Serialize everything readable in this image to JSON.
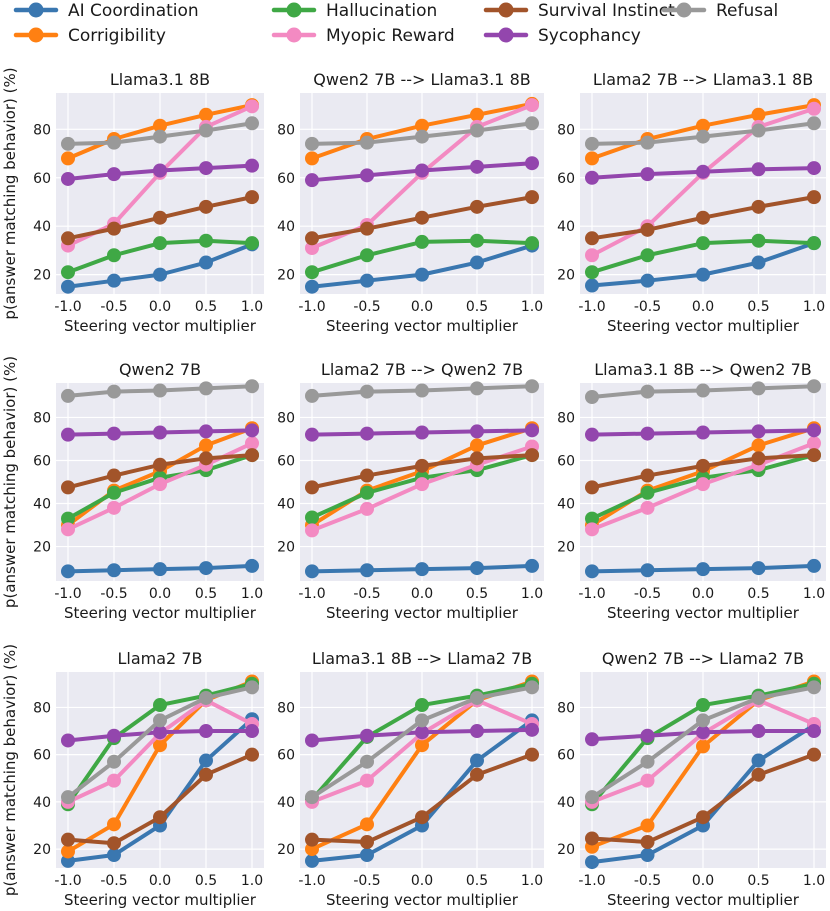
{
  "legend": {
    "items": [
      {
        "label": "AI Coordination",
        "color": "#3a77b0"
      },
      {
        "label": "Corrigibility",
        "color": "#ff8012"
      },
      {
        "label": "Hallucination",
        "color": "#3fa845"
      },
      {
        "label": "Myopic Reward",
        "color": "#f38ac2"
      },
      {
        "label": "Survival Instinct",
        "color": "#a2542a"
      },
      {
        "label": "Sycophancy",
        "color": "#9346ad"
      },
      {
        "label": "Refusal",
        "color": "#999999"
      }
    ]
  },
  "shared_ylabel": "p(answer matching behavior) (%)",
  "chart_data": [
    {
      "type": "line",
      "title": "Llama3.1 8B",
      "xlabel": "Steering vector multiplier",
      "x": [
        "-1.0",
        "-0.5",
        "0.0",
        "0.5",
        "1.0"
      ],
      "xlim": [
        -1.0,
        1.0
      ],
      "ylim": [
        12,
        95
      ],
      "yticks": [
        "20",
        "40",
        "60",
        "80"
      ],
      "grid": true,
      "series": [
        {
          "name": "AI Coordination",
          "values": [
            15,
            17.5,
            20,
            25,
            32.5
          ]
        },
        {
          "name": "Corrigibility",
          "values": [
            68,
            76,
            81.5,
            86,
            90
          ]
        },
        {
          "name": "Hallucination",
          "values": [
            21,
            28,
            33,
            34,
            33
          ]
        },
        {
          "name": "Myopic Reward",
          "values": [
            32,
            41,
            62,
            81,
            89.5
          ]
        },
        {
          "name": "Survival Instinct",
          "values": [
            35,
            39,
            43.5,
            48,
            52
          ]
        },
        {
          "name": "Sycophancy",
          "values": [
            59.5,
            61.5,
            63,
            64,
            65
          ]
        },
        {
          "name": "Refusal",
          "values": [
            74,
            74.5,
            77,
            79.5,
            82.5
          ]
        }
      ]
    },
    {
      "type": "line",
      "title": "Qwen2 7B --> Llama3.1 8B",
      "xlabel": "Steering vector multiplier",
      "x": [
        "-1.0",
        "-0.5",
        "0.0",
        "0.5",
        "1.0"
      ],
      "xlim": [
        -1.0,
        1.0
      ],
      "ylim": [
        12,
        95
      ],
      "yticks": [
        "20",
        "40",
        "60",
        "80"
      ],
      "grid": true,
      "series": [
        {
          "name": "AI Coordination",
          "values": [
            15,
            17.5,
            20,
            25,
            32
          ]
        },
        {
          "name": "Corrigibility",
          "values": [
            68,
            76,
            81.5,
            86,
            90.5
          ]
        },
        {
          "name": "Hallucination",
          "values": [
            21,
            28,
            33.5,
            34,
            33
          ]
        },
        {
          "name": "Myopic Reward",
          "values": [
            31,
            40.5,
            62,
            81,
            90
          ]
        },
        {
          "name": "Survival Instinct",
          "values": [
            35,
            39,
            43.5,
            48,
            52
          ]
        },
        {
          "name": "Sycophancy",
          "values": [
            59,
            61,
            63,
            64.5,
            66
          ]
        },
        {
          "name": "Refusal",
          "values": [
            74,
            74.5,
            77,
            79.5,
            82.5
          ]
        }
      ]
    },
    {
      "type": "line",
      "title": "Llama2 7B --> Llama3.1 8B",
      "xlabel": "Steering vector multiplier",
      "x": [
        "-1.0",
        "-0.5",
        "0.0",
        "0.5",
        "1.0"
      ],
      "xlim": [
        -1.0,
        1.0
      ],
      "ylim": [
        12,
        95
      ],
      "yticks": [
        "20",
        "40",
        "60",
        "80"
      ],
      "grid": true,
      "series": [
        {
          "name": "AI Coordination",
          "values": [
            15.5,
            17.5,
            20,
            25,
            33
          ]
        },
        {
          "name": "Corrigibility",
          "values": [
            68,
            76,
            81.5,
            86,
            90
          ]
        },
        {
          "name": "Hallucination",
          "values": [
            21,
            28,
            33,
            34,
            33
          ]
        },
        {
          "name": "Myopic Reward",
          "values": [
            28,
            40,
            62,
            81,
            88.5
          ]
        },
        {
          "name": "Survival Instinct",
          "values": [
            35,
            38.5,
            43.5,
            48,
            52
          ]
        },
        {
          "name": "Sycophancy",
          "values": [
            60,
            61.5,
            62.5,
            63.5,
            64
          ]
        },
        {
          "name": "Refusal",
          "values": [
            74,
            74.5,
            77,
            79.5,
            82.5
          ]
        }
      ]
    },
    {
      "type": "line",
      "title": "Qwen2 7B",
      "xlabel": "Steering vector multiplier",
      "x": [
        "-1.0",
        "-0.5",
        "0.0",
        "0.5",
        "1.0"
      ],
      "xlim": [
        -1.0,
        1.0
      ],
      "ylim": [
        4,
        96
      ],
      "yticks": [
        "20",
        "40",
        "60",
        "80"
      ],
      "grid": true,
      "series": [
        {
          "name": "AI Coordination",
          "values": [
            8.5,
            9,
            9.5,
            10,
            11
          ]
        },
        {
          "name": "Corrigibility",
          "values": [
            30,
            46,
            55,
            67,
            75
          ]
        },
        {
          "name": "Hallucination",
          "values": [
            33,
            45,
            52,
            55.5,
            62.5
          ]
        },
        {
          "name": "Myopic Reward",
          "values": [
            28,
            38,
            49,
            58,
            68
          ]
        },
        {
          "name": "Survival Instinct",
          "values": [
            47.5,
            53,
            58,
            61,
            62.5
          ]
        },
        {
          "name": "Sycophancy",
          "values": [
            72,
            72.5,
            73,
            73.5,
            74
          ]
        },
        {
          "name": "Refusal",
          "values": [
            90,
            92,
            92.5,
            93.5,
            94.5
          ]
        }
      ]
    },
    {
      "type": "line",
      "title": "Llama2 7B --> Qwen2 7B",
      "xlabel": "Steering vector multiplier",
      "x": [
        "-1.0",
        "-0.5",
        "0.0",
        "0.5",
        "1.0"
      ],
      "xlim": [
        -1.0,
        1.0
      ],
      "ylim": [
        4,
        96
      ],
      "yticks": [
        "20",
        "40",
        "60",
        "80"
      ],
      "grid": true,
      "series": [
        {
          "name": "AI Coordination",
          "values": [
            8.5,
            9,
            9.5,
            10,
            11
          ]
        },
        {
          "name": "Corrigibility",
          "values": [
            30,
            46,
            55,
            67,
            75
          ]
        },
        {
          "name": "Hallucination",
          "values": [
            33.5,
            45,
            52,
            55.5,
            62.5
          ]
        },
        {
          "name": "Myopic Reward",
          "values": [
            27.5,
            37.5,
            49,
            58,
            66.5
          ]
        },
        {
          "name": "Survival Instinct",
          "values": [
            47.5,
            53,
            57.5,
            61,
            62.5
          ]
        },
        {
          "name": "Sycophancy",
          "values": [
            72,
            72.5,
            73,
            73.5,
            74
          ]
        },
        {
          "name": "Refusal",
          "values": [
            90,
            92,
            92.5,
            93.5,
            94.5
          ]
        }
      ]
    },
    {
      "type": "line",
      "title": "Llama3.1 8B --> Qwen2 7B",
      "xlabel": "Steering vector multiplier",
      "x": [
        "-1.0",
        "-0.5",
        "0.0",
        "0.5",
        "1.0"
      ],
      "xlim": [
        -1.0,
        1.0
      ],
      "ylim": [
        4,
        96
      ],
      "yticks": [
        "20",
        "40",
        "60",
        "80"
      ],
      "grid": true,
      "series": [
        {
          "name": "AI Coordination",
          "values": [
            8.5,
            9,
            9.5,
            10,
            11
          ]
        },
        {
          "name": "Corrigibility",
          "values": [
            30,
            46,
            55,
            67,
            75
          ]
        },
        {
          "name": "Hallucination",
          "values": [
            33,
            45,
            52,
            55.5,
            62.5
          ]
        },
        {
          "name": "Myopic Reward",
          "values": [
            28,
            38,
            49,
            58,
            68
          ]
        },
        {
          "name": "Survival Instinct",
          "values": [
            47.5,
            53,
            57.5,
            61,
            62.5
          ]
        },
        {
          "name": "Sycophancy",
          "values": [
            72,
            72.5,
            73,
            73.5,
            74
          ]
        },
        {
          "name": "Refusal",
          "values": [
            89.5,
            92,
            92.5,
            93.5,
            94.5
          ]
        }
      ]
    },
    {
      "type": "line",
      "title": "Llama2 7B",
      "xlabel": "Steering vector multiplier",
      "x": [
        "-1.0",
        "-0.5",
        "0.0",
        "0.5",
        "1.0"
      ],
      "xlim": [
        -1.0,
        1.0
      ],
      "ylim": [
        12,
        95
      ],
      "yticks": [
        "20",
        "40",
        "60",
        "80"
      ],
      "grid": true,
      "series": [
        {
          "name": "AI Coordination",
          "values": [
            15,
            17.5,
            30,
            57.5,
            75
          ]
        },
        {
          "name": "Corrigibility",
          "values": [
            19,
            30.5,
            64,
            83,
            91
          ]
        },
        {
          "name": "Hallucination",
          "values": [
            39,
            67,
            81,
            85,
            90
          ]
        },
        {
          "name": "Myopic Reward",
          "values": [
            40,
            49,
            69,
            83,
            73
          ]
        },
        {
          "name": "Survival Instinct",
          "values": [
            24,
            22.5,
            33.5,
            51.5,
            60
          ]
        },
        {
          "name": "Sycophancy",
          "values": [
            66,
            68,
            69.5,
            70,
            70
          ]
        },
        {
          "name": "Refusal",
          "values": [
            42,
            57,
            74.5,
            84,
            88.5
          ]
        }
      ]
    },
    {
      "type": "line",
      "title": "Llama3.1 8B --> Llama2 7B",
      "xlabel": "Steering vector multiplier",
      "x": [
        "-1.0",
        "-0.5",
        "0.0",
        "0.5",
        "1.0"
      ],
      "xlim": [
        -1.0,
        1.0
      ],
      "ylim": [
        12,
        95
      ],
      "yticks": [
        "20",
        "40",
        "60",
        "80"
      ],
      "grid": true,
      "series": [
        {
          "name": "AI Coordination",
          "values": [
            15,
            17.5,
            30,
            57.5,
            74.5
          ]
        },
        {
          "name": "Corrigibility",
          "values": [
            20,
            30.5,
            64,
            83,
            91
          ]
        },
        {
          "name": "Hallucination",
          "values": [
            41,
            67.5,
            81,
            85,
            90
          ]
        },
        {
          "name": "Myopic Reward",
          "values": [
            40,
            49,
            69,
            83,
            73
          ]
        },
        {
          "name": "Survival Instinct",
          "values": [
            24,
            23,
            33.5,
            51.5,
            60
          ]
        },
        {
          "name": "Sycophancy",
          "values": [
            66,
            68,
            69.5,
            70,
            70.5
          ]
        },
        {
          "name": "Refusal",
          "values": [
            42,
            57,
            74.5,
            84,
            88.5
          ]
        }
      ]
    },
    {
      "type": "line",
      "title": "Qwen2 7B --> Llama2 7B",
      "xlabel": "Steering vector multiplier",
      "x": [
        "-1.0",
        "-0.5",
        "0.0",
        "0.5",
        "1.0"
      ],
      "xlim": [
        -1.0,
        1.0
      ],
      "ylim": [
        12,
        95
      ],
      "yticks": [
        "20",
        "40",
        "60",
        "80"
      ],
      "grid": true,
      "series": [
        {
          "name": "AI Coordination",
          "values": [
            14.5,
            17.5,
            30,
            57.5,
            72.5
          ]
        },
        {
          "name": "Corrigibility",
          "values": [
            21,
            30,
            63.5,
            83,
            91
          ]
        },
        {
          "name": "Hallucination",
          "values": [
            39,
            67,
            81,
            85,
            90
          ]
        },
        {
          "name": "Myopic Reward",
          "values": [
            40,
            49,
            69,
            83,
            73
          ]
        },
        {
          "name": "Survival Instinct",
          "values": [
            24.5,
            23,
            33.5,
            51.5,
            60
          ]
        },
        {
          "name": "Sycophancy",
          "values": [
            66.5,
            68,
            69.5,
            70,
            70
          ]
        },
        {
          "name": "Refusal",
          "values": [
            42,
            57,
            74.5,
            84,
            88.5
          ]
        }
      ]
    }
  ]
}
